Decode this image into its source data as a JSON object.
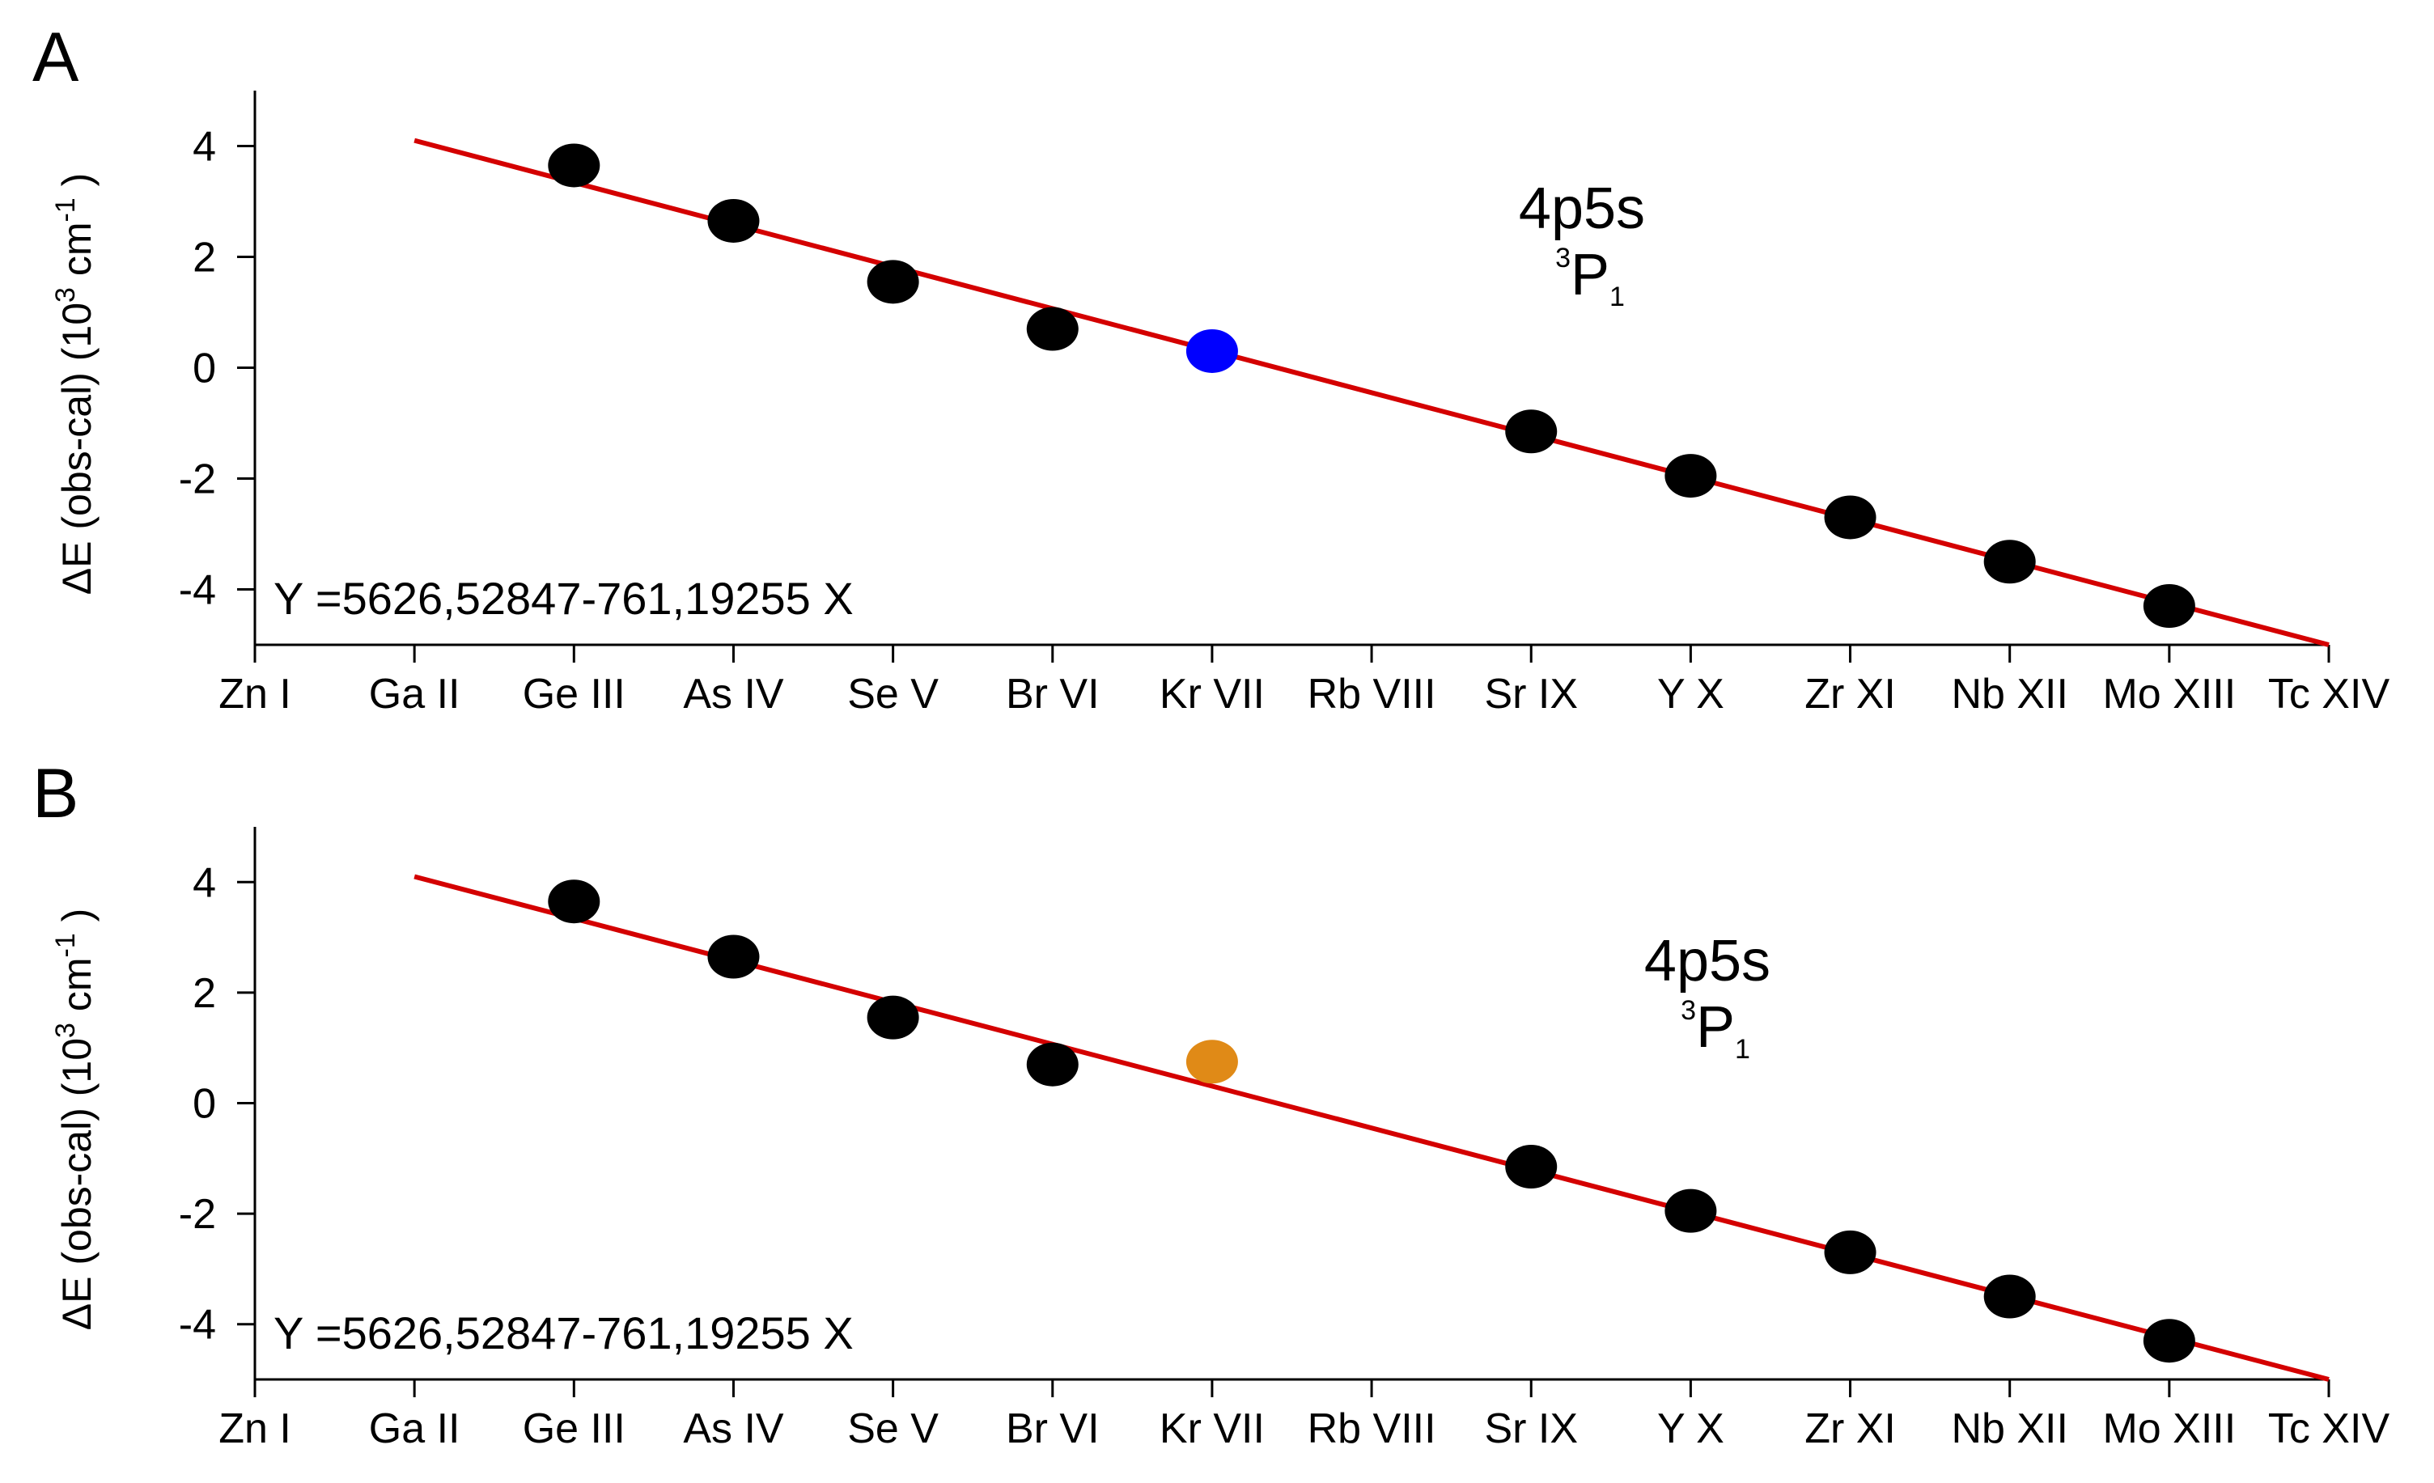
{
  "chart_data": [
    {
      "panel": "A",
      "type": "scatter",
      "xlabel": "",
      "ylabel": {
        "text": "ΔE (obs-cal)",
        "unit_base": "(10",
        "unit_exp1": "3",
        "unit_mid": " cm",
        "unit_exp2": "-1",
        "unit_end": ")"
      },
      "categories": [
        "Zn I",
        "Ga II",
        "Ge III",
        "As IV",
        "Se V",
        "Br VI",
        "Kr VII",
        "Rb VIII",
        "Sr IX",
        "Y X",
        "Zr XI",
        "Nb XII",
        "Mo XIII",
        "Tc XIV"
      ],
      "ylim": [
        -5,
        5
      ],
      "yticks": [
        4,
        2,
        0,
        -2,
        -4
      ],
      "ytick_labels": [
        "4",
        "2",
        "0",
        "-2",
        "-4"
      ],
      "points": [
        {
          "category": "Ge III",
          "value": 3.65,
          "color": "#000000"
        },
        {
          "category": "As IV",
          "value": 2.65,
          "color": "#000000"
        },
        {
          "category": "Se V",
          "value": 1.55,
          "color": "#000000"
        },
        {
          "category": "Br VI",
          "value": 0.7,
          "color": "#000000"
        },
        {
          "category": "Kr VII",
          "value": 0.3,
          "color": "#0000ff"
        },
        {
          "category": "Sr IX",
          "value": -1.15,
          "color": "#000000"
        },
        {
          "category": "Y X",
          "value": -1.95,
          "color": "#000000"
        },
        {
          "category": "Zr XI",
          "value": -2.7,
          "color": "#000000"
        },
        {
          "category": "Nb XII",
          "value": -3.5,
          "color": "#000000"
        },
        {
          "category": "Mo XIII",
          "value": -4.3,
          "color": "#000000"
        }
      ],
      "fit_line": {
        "color": "#d40000",
        "from": {
          "category": "Ga II",
          "value": 4.1
        },
        "to": {
          "category": "Tc XIV",
          "value": -5.0
        }
      },
      "annotation": {
        "line1": "4p5s",
        "sup": "3",
        "letter": "P",
        "sub": "1"
      },
      "equation": "Y =5626,52847-761,19255 X"
    },
    {
      "panel": "B",
      "type": "scatter",
      "xlabel": "",
      "ylabel": {
        "text": "ΔE (obs-cal)",
        "unit_base": "(10",
        "unit_exp1": "3",
        "unit_mid": " cm",
        "unit_exp2": "-1",
        "unit_end": ")"
      },
      "categories": [
        "Zn I",
        "Ga II",
        "Ge III",
        "As IV",
        "Se V",
        "Br VI",
        "Kr VII",
        "Rb VIII",
        "Sr IX",
        "Y X",
        "Zr XI",
        "Nb XII",
        "Mo XIII",
        "Tc XIV"
      ],
      "ylim": [
        -5,
        5
      ],
      "yticks": [
        4,
        2,
        0,
        -2,
        -4
      ],
      "ytick_labels": [
        "4",
        "2",
        "0",
        "-2",
        "-4"
      ],
      "points": [
        {
          "category": "Ge III",
          "value": 3.65,
          "color": "#000000"
        },
        {
          "category": "As IV",
          "value": 2.65,
          "color": "#000000"
        },
        {
          "category": "Se V",
          "value": 1.55,
          "color": "#000000"
        },
        {
          "category": "Br VI",
          "value": 0.7,
          "color": "#000000"
        },
        {
          "category": "Kr VII",
          "value": 0.75,
          "color": "#e08a17"
        },
        {
          "category": "Sr IX",
          "value": -1.15,
          "color": "#000000"
        },
        {
          "category": "Y X",
          "value": -1.95,
          "color": "#000000"
        },
        {
          "category": "Zr XI",
          "value": -2.7,
          "color": "#000000"
        },
        {
          "category": "Nb XII",
          "value": -3.5,
          "color": "#000000"
        },
        {
          "category": "Mo XIII",
          "value": -4.3,
          "color": "#000000"
        }
      ],
      "fit_line": {
        "color": "#d40000",
        "from": {
          "category": "Ga II",
          "value": 4.1
        },
        "to": {
          "category": "Tc XIV",
          "value": -5.0
        }
      },
      "annotation": {
        "line1": "4p5s",
        "sup": "3",
        "letter": "P",
        "sub": "1"
      },
      "equation": "Y =5626,52847-761,19255 X"
    }
  ]
}
